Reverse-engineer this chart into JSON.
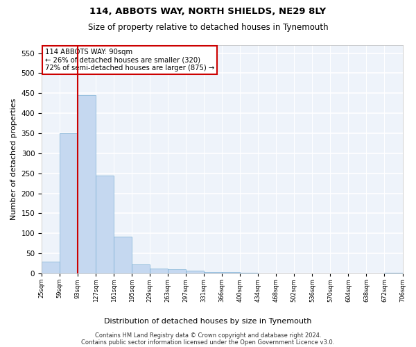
{
  "title1": "114, ABBOTS WAY, NORTH SHIELDS, NE29 8LY",
  "title2": "Size of property relative to detached houses in Tynemouth",
  "xlabel": "Distribution of detached houses by size in Tynemouth",
  "ylabel": "Number of detached properties",
  "bin_labels": [
    "25sqm",
    "59sqm",
    "93sqm",
    "127sqm",
    "161sqm",
    "195sqm",
    "229sqm",
    "263sqm",
    "297sqm",
    "331sqm",
    "366sqm",
    "400sqm",
    "434sqm",
    "468sqm",
    "502sqm",
    "536sqm",
    "570sqm",
    "604sqm",
    "638sqm",
    "672sqm",
    "706sqm"
  ],
  "bar_values": [
    30,
    350,
    445,
    245,
    92,
    22,
    12,
    10,
    7,
    4,
    4,
    1,
    0,
    0,
    0,
    0,
    0,
    0,
    0,
    2
  ],
  "bar_color": "#c5d8f0",
  "bar_edge_color": "#7bafd4",
  "vline_x": 1.5,
  "vline_color": "#cc0000",
  "annotation_text": "114 ABBOTS WAY: 90sqm\n← 26% of detached houses are smaller (320)\n72% of semi-detached houses are larger (875) →",
  "annotation_box_color": "#ffffff",
  "annotation_box_edge": "#cc0000",
  "ylim": [
    0,
    570
  ],
  "yticks": [
    0,
    50,
    100,
    150,
    200,
    250,
    300,
    350,
    400,
    450,
    500,
    550
  ],
  "footnote1": "Contains HM Land Registry data © Crown copyright and database right 2024.",
  "footnote2": "Contains public sector information licensed under the Open Government Licence v3.0.",
  "background_color": "#eef3fa",
  "grid_color": "#ffffff"
}
